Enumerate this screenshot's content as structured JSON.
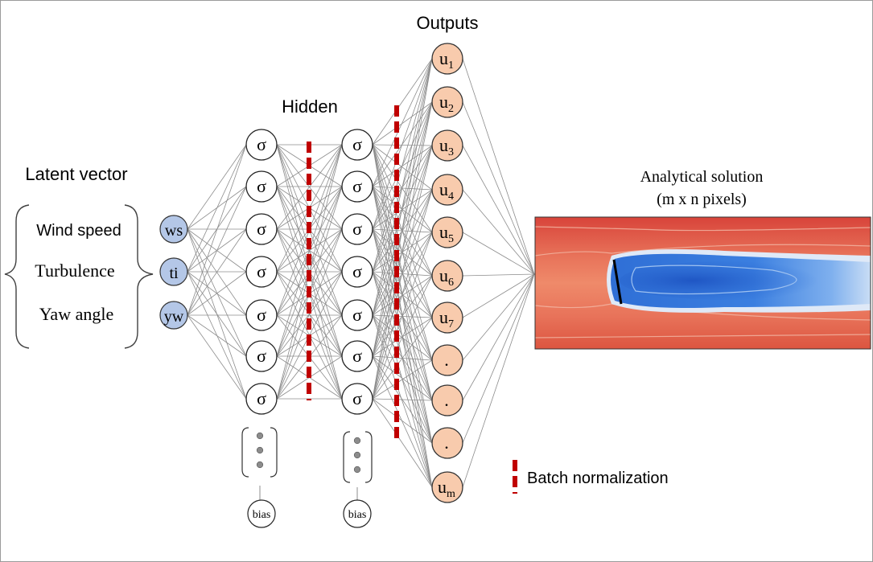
{
  "headings": {
    "latent": "Latent vector",
    "hidden": "Hidden",
    "outputs": "Outputs",
    "analytical_title": "Analytical solution",
    "analytical_subtitle": "(m x n pixels)"
  },
  "inputs": [
    {
      "label": "Wind speed",
      "node": "ws"
    },
    {
      "label": "Turbulence",
      "node": "ti"
    },
    {
      "label": "Yaw angle",
      "node": "yw"
    }
  ],
  "hidden_node_symbol": "σ",
  "bias_label": "bias",
  "outputs": [
    {
      "base": "u",
      "sub": "1"
    },
    {
      "base": "u",
      "sub": "2"
    },
    {
      "base": "u",
      "sub": "3"
    },
    {
      "base": "u",
      "sub": "4"
    },
    {
      "base": "u",
      "sub": "5"
    },
    {
      "base": "u",
      "sub": "6"
    },
    {
      "base": "u",
      "sub": "7"
    },
    {
      "base": ".",
      "sub": ""
    },
    {
      "base": ".",
      "sub": ""
    },
    {
      "base": ".",
      "sub": ""
    },
    {
      "base": "u",
      "sub": "m"
    }
  ],
  "legend": {
    "batch_norm": "Batch normalization"
  },
  "colors": {
    "input_node": "#b4c7e7",
    "output_node": "#f8cbad",
    "batch_norm": "#c00000",
    "edge": "#8c8c8c"
  }
}
